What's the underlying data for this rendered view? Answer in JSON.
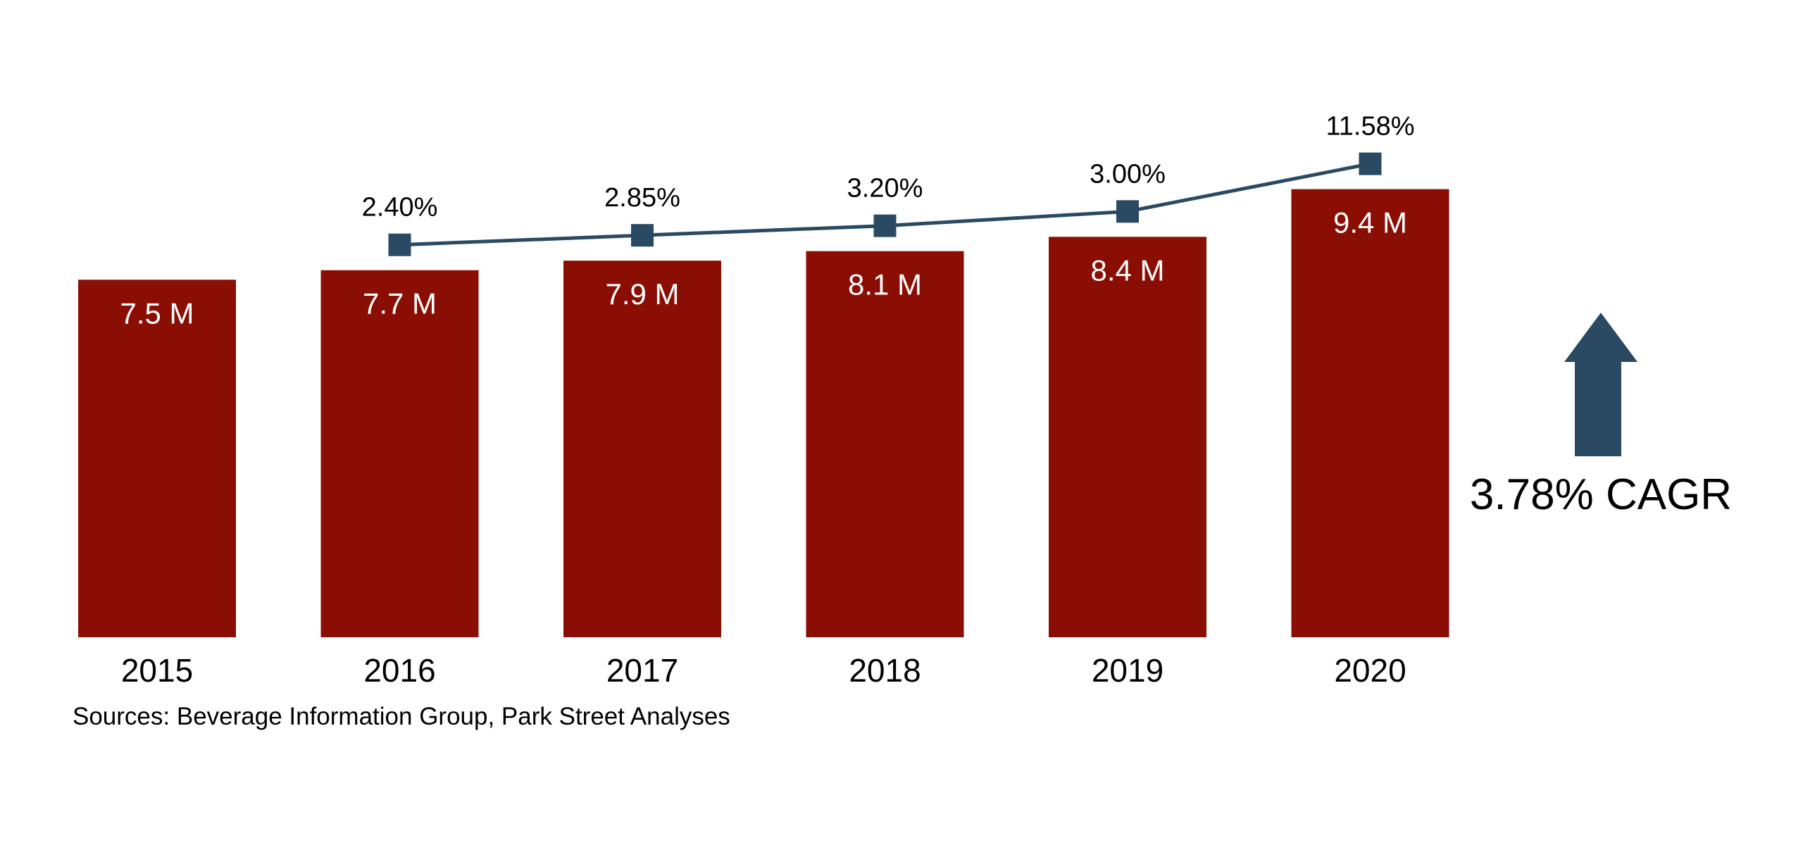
{
  "chart_data": {
    "type": "bar",
    "title": "",
    "xlabel": "",
    "ylabel": "",
    "categories": [
      "2015",
      "2016",
      "2017",
      "2018",
      "2019",
      "2020"
    ],
    "ylim": [
      0,
      10
    ],
    "grid": false,
    "legend": "none",
    "series": [
      {
        "type": "bar",
        "values": [
          7.5,
          7.7,
          7.9,
          8.1,
          8.4,
          9.4
        ],
        "labels": [
          "7.5 M",
          "7.7 M",
          "7.9 M",
          "8.1 M",
          "8.4 M",
          "9.4 M"
        ],
        "color": "#8B0E04"
      },
      {
        "type": "line",
        "values": [
          null,
          2.4,
          2.85,
          3.2,
          3.0,
          11.58
        ],
        "labels": [
          "",
          "2.40%",
          "2.85%",
          "3.20%",
          "3.00%",
          "11.58%"
        ],
        "marker": "square",
        "color": "#2A4A63"
      }
    ],
    "annotation": {
      "text": "3.78% CAGR",
      "icon": "up-arrow-icon",
      "color": "#2A4A63"
    },
    "source": "Sources: Beverage Information Group, Park Street Analyses"
  }
}
